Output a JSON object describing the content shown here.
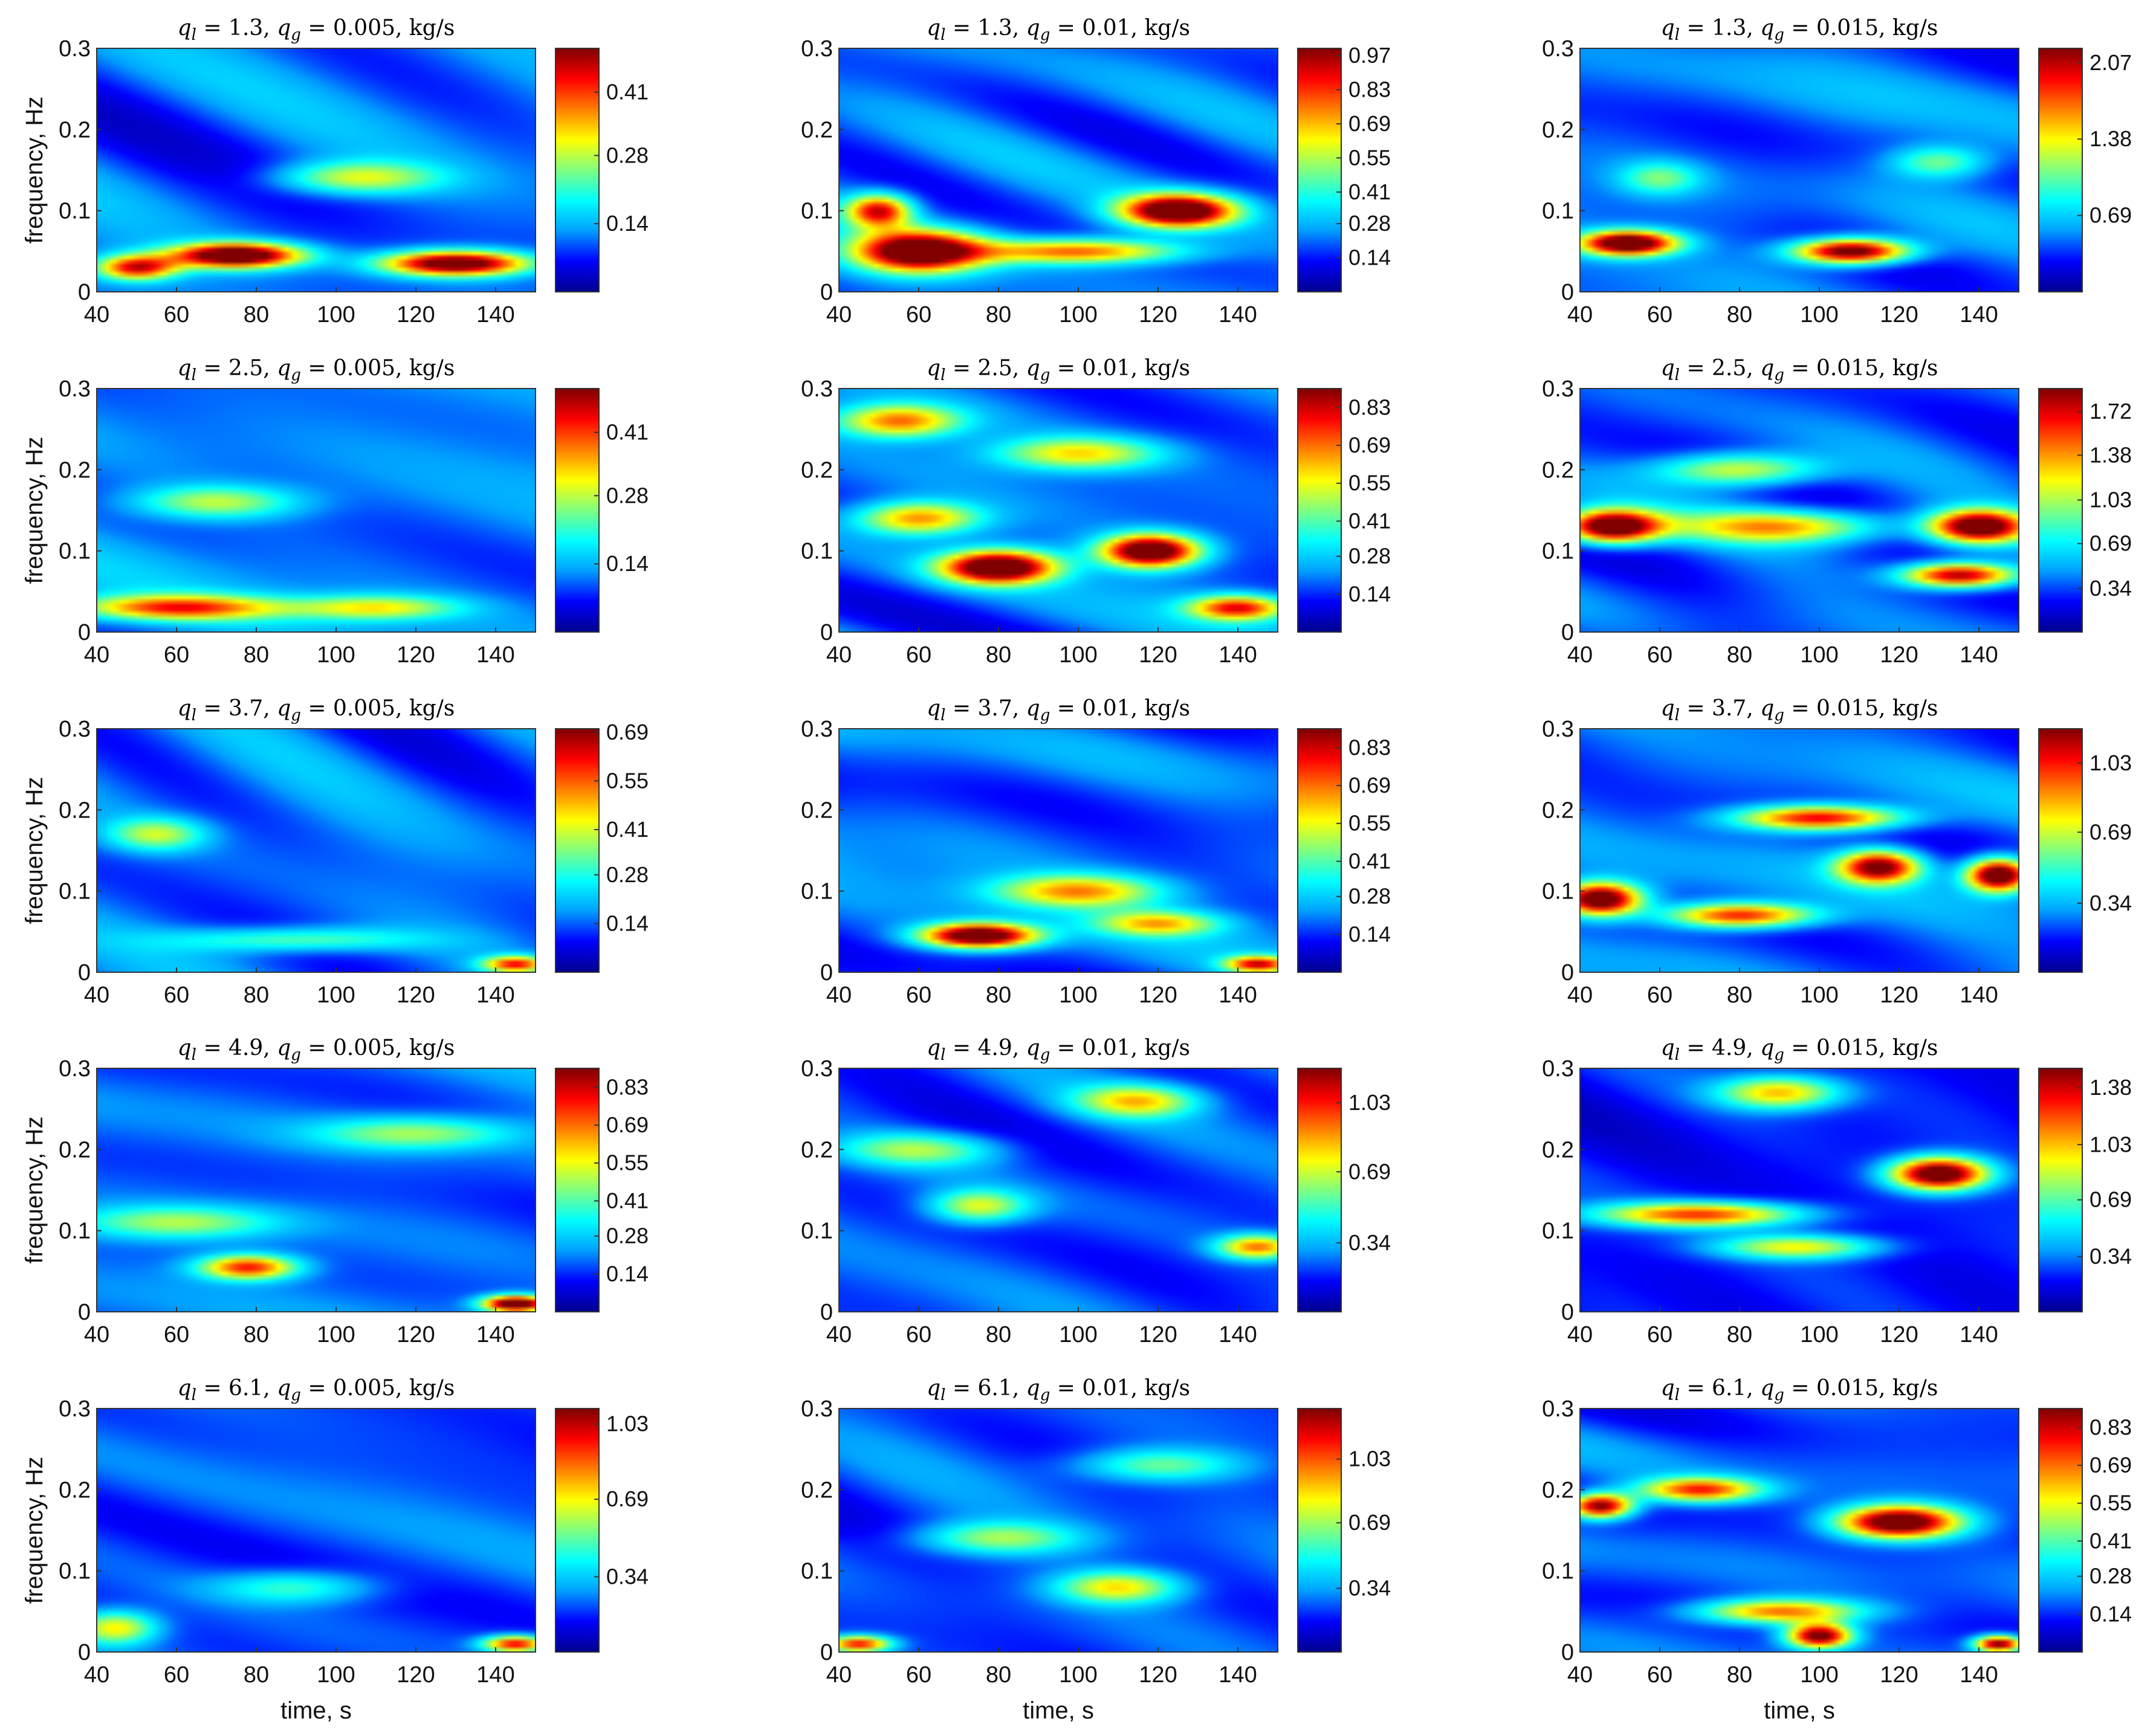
{
  "figure": {
    "xlabel": "time, s",
    "ylabel": "frequency, Hz",
    "xticks": [
      "40",
      "60",
      "80",
      "100",
      "120",
      "140"
    ],
    "yticks": [
      "0",
      "0.1",
      "0.2",
      "0.3"
    ],
    "colormap": [
      "#00008f",
      "#0000ff",
      "#00a0ff",
      "#00ffff",
      "#80ff80",
      "#ffff00",
      "#ff8000",
      "#ff0000",
      "#800000"
    ]
  },
  "chart_data": [
    {
      "type": "heatmap",
      "row": 0,
      "col": 0,
      "ql": "1.3",
      "qg": "0.005",
      "title": "q_l = 1.3, q_g = 0.005, kg/s",
      "xlabel": "",
      "ylabel": "frequency, Hz",
      "xlim": [
        40,
        150
      ],
      "ylim": [
        0,
        0.3
      ],
      "colorbar_ticks": [
        "0.14",
        "0.28",
        "0.41"
      ],
      "color_range": [
        0,
        0.5
      ],
      "hotspots": [
        {
          "t": 75,
          "f": 0.045,
          "v": 0.5,
          "w": 16,
          "h": 0.015
        },
        {
          "t": 130,
          "f": 0.035,
          "v": 0.48,
          "w": 18,
          "h": 0.015
        },
        {
          "t": 105,
          "f": 0.14,
          "v": 0.2,
          "w": 20,
          "h": 0.02
        },
        {
          "t": 50,
          "f": 0.03,
          "v": 0.35,
          "w": 10,
          "h": 0.015
        }
      ]
    },
    {
      "type": "heatmap",
      "row": 0,
      "col": 1,
      "ql": "1.3",
      "qg": "0.01",
      "title": "q_l = 1.3, q_g = 0.01, kg/s",
      "xlabel": "",
      "ylabel": "",
      "xlim": [
        40,
        150
      ],
      "ylim": [
        0,
        0.3
      ],
      "colorbar_ticks": [
        "0.14",
        "0.28",
        "0.41",
        "0.55",
        "0.69",
        "0.83",
        "0.97"
      ],
      "color_range": [
        0,
        1.0
      ],
      "hotspots": [
        {
          "t": 60,
          "f": 0.05,
          "v": 1.0,
          "w": 16,
          "h": 0.025
        },
        {
          "t": 125,
          "f": 0.1,
          "v": 1.0,
          "w": 14,
          "h": 0.02
        },
        {
          "t": 100,
          "f": 0.05,
          "v": 0.6,
          "w": 25,
          "h": 0.015
        },
        {
          "t": 50,
          "f": 0.1,
          "v": 0.7,
          "w": 8,
          "h": 0.02
        }
      ]
    },
    {
      "type": "heatmap",
      "row": 0,
      "col": 2,
      "ql": "1.3",
      "qg": "0.015",
      "title": "q_l = 1.3, q_g = 0.015, kg/s",
      "xlabel": "",
      "ylabel": "",
      "xlim": [
        40,
        150
      ],
      "ylim": [
        0,
        0.3
      ],
      "colorbar_ticks": [
        "0.69",
        "1.38",
        "2.07"
      ],
      "color_range": [
        0,
        2.2
      ],
      "hotspots": [
        {
          "t": 52,
          "f": 0.06,
          "v": 2.2,
          "w": 12,
          "h": 0.015
        },
        {
          "t": 108,
          "f": 0.05,
          "v": 2.1,
          "w": 14,
          "h": 0.015
        },
        {
          "t": 60,
          "f": 0.14,
          "v": 0.6,
          "w": 10,
          "h": 0.02
        },
        {
          "t": 130,
          "f": 0.16,
          "v": 0.7,
          "w": 12,
          "h": 0.02
        }
      ]
    },
    {
      "type": "heatmap",
      "row": 1,
      "col": 0,
      "ql": "2.5",
      "qg": "0.005",
      "title": "q_l = 2.5, q_g = 0.005, kg/s",
      "xlabel": "",
      "ylabel": "frequency, Hz",
      "xlim": [
        40,
        150
      ],
      "ylim": [
        0,
        0.3
      ],
      "colorbar_ticks": [
        "0.14",
        "0.28",
        "0.41"
      ],
      "color_range": [
        0,
        0.5
      ],
      "hotspots": [
        {
          "t": 60,
          "f": 0.03,
          "v": 0.3,
          "w": 25,
          "h": 0.015
        },
        {
          "t": 110,
          "f": 0.03,
          "v": 0.2,
          "w": 20,
          "h": 0.015
        },
        {
          "t": 70,
          "f": 0.16,
          "v": 0.18,
          "w": 20,
          "h": 0.02
        }
      ]
    },
    {
      "type": "heatmap",
      "row": 1,
      "col": 1,
      "ql": "2.5",
      "qg": "0.01",
      "title": "q_l = 2.5, q_g = 0.01, kg/s",
      "xlabel": "",
      "ylabel": "",
      "xlim": [
        40,
        150
      ],
      "ylim": [
        0,
        0.3
      ],
      "colorbar_ticks": [
        "0.14",
        "0.28",
        "0.41",
        "0.55",
        "0.69",
        "0.83"
      ],
      "color_range": [
        0,
        0.9
      ],
      "hotspots": [
        {
          "t": 80,
          "f": 0.08,
          "v": 0.9,
          "w": 14,
          "h": 0.02
        },
        {
          "t": 118,
          "f": 0.1,
          "v": 0.9,
          "w": 12,
          "h": 0.02
        },
        {
          "t": 60,
          "f": 0.14,
          "v": 0.5,
          "w": 15,
          "h": 0.02
        },
        {
          "t": 55,
          "f": 0.26,
          "v": 0.5,
          "w": 15,
          "h": 0.02
        },
        {
          "t": 140,
          "f": 0.03,
          "v": 0.6,
          "w": 12,
          "h": 0.015
        },
        {
          "t": 100,
          "f": 0.22,
          "v": 0.4,
          "w": 20,
          "h": 0.02
        }
      ]
    },
    {
      "type": "heatmap",
      "row": 1,
      "col": 2,
      "ql": "2.5",
      "qg": "0.015",
      "title": "q_l = 2.5, q_g = 0.015, kg/s",
      "xlabel": "",
      "ylabel": "",
      "xlim": [
        40,
        150
      ],
      "ylim": [
        0,
        0.3
      ],
      "colorbar_ticks": [
        "0.34",
        "0.69",
        "1.03",
        "1.38",
        "1.72"
      ],
      "color_range": [
        0,
        1.9
      ],
      "hotspots": [
        {
          "t": 48,
          "f": 0.13,
          "v": 1.9,
          "w": 12,
          "h": 0.02
        },
        {
          "t": 140,
          "f": 0.13,
          "v": 1.8,
          "w": 12,
          "h": 0.02
        },
        {
          "t": 135,
          "f": 0.07,
          "v": 1.6,
          "w": 14,
          "h": 0.015
        },
        {
          "t": 80,
          "f": 0.2,
          "v": 0.9,
          "w": 20,
          "h": 0.02
        },
        {
          "t": 90,
          "f": 0.13,
          "v": 1.0,
          "w": 25,
          "h": 0.02
        }
      ]
    },
    {
      "type": "heatmap",
      "row": 2,
      "col": 0,
      "ql": "3.7",
      "qg": "0.005",
      "title": "q_l = 3.7, q_g = 0.005, kg/s",
      "xlabel": "",
      "ylabel": "frequency, Hz",
      "xlim": [
        40,
        150
      ],
      "ylim": [
        0,
        0.3
      ],
      "colorbar_ticks": [
        "0.14",
        "0.28",
        "0.41",
        "0.55",
        "0.69"
      ],
      "color_range": [
        0,
        0.7
      ],
      "hotspots": [
        {
          "t": 55,
          "f": 0.17,
          "v": 0.25,
          "w": 12,
          "h": 0.02
        },
        {
          "t": 90,
          "f": 0.04,
          "v": 0.22,
          "w": 30,
          "h": 0.015
        },
        {
          "t": 145,
          "f": 0.01,
          "v": 0.45,
          "w": 8,
          "h": 0.01
        }
      ]
    },
    {
      "type": "heatmap",
      "row": 2,
      "col": 1,
      "ql": "3.7",
      "qg": "0.01",
      "title": "q_l = 3.7, q_g = 0.01, kg/s",
      "xlabel": "",
      "ylabel": "",
      "xlim": [
        40,
        150
      ],
      "ylim": [
        0,
        0.3
      ],
      "colorbar_ticks": [
        "0.14",
        "0.28",
        "0.41",
        "0.55",
        "0.69",
        "0.83"
      ],
      "color_range": [
        0,
        0.9
      ],
      "hotspots": [
        {
          "t": 75,
          "f": 0.045,
          "v": 0.9,
          "w": 14,
          "h": 0.015
        },
        {
          "t": 100,
          "f": 0.1,
          "v": 0.45,
          "w": 20,
          "h": 0.02
        },
        {
          "t": 120,
          "f": 0.06,
          "v": 0.4,
          "w": 15,
          "h": 0.015
        },
        {
          "t": 145,
          "f": 0.01,
          "v": 0.6,
          "w": 8,
          "h": 0.01
        }
      ]
    },
    {
      "type": "heatmap",
      "row": 2,
      "col": 2,
      "ql": "3.7",
      "qg": "0.015",
      "title": "q_l = 3.7, q_g = 0.015, kg/s",
      "xlabel": "",
      "ylabel": "",
      "xlim": [
        40,
        150
      ],
      "ylim": [
        0,
        0.3
      ],
      "colorbar_ticks": [
        "0.34",
        "0.69",
        "1.03"
      ],
      "color_range": [
        0,
        1.2
      ],
      "hotspots": [
        {
          "t": 45,
          "f": 0.09,
          "v": 1.2,
          "w": 10,
          "h": 0.02
        },
        {
          "t": 145,
          "f": 0.12,
          "v": 1.2,
          "w": 8,
          "h": 0.02
        },
        {
          "t": 100,
          "f": 0.19,
          "v": 0.9,
          "w": 20,
          "h": 0.015
        },
        {
          "t": 115,
          "f": 0.13,
          "v": 1.0,
          "w": 10,
          "h": 0.02
        },
        {
          "t": 80,
          "f": 0.07,
          "v": 0.85,
          "w": 18,
          "h": 0.015
        }
      ]
    },
    {
      "type": "heatmap",
      "row": 3,
      "col": 0,
      "ql": "4.9",
      "qg": "0.005",
      "title": "q_l = 4.9, q_g = 0.005, kg/s",
      "xlabel": "",
      "ylabel": "frequency, Hz",
      "xlim": [
        40,
        150
      ],
      "ylim": [
        0,
        0.3
      ],
      "colorbar_ticks": [
        "0.14",
        "0.28",
        "0.41",
        "0.55",
        "0.69",
        "0.83"
      ],
      "color_range": [
        0,
        0.9
      ],
      "hotspots": [
        {
          "t": 78,
          "f": 0.055,
          "v": 0.6,
          "w": 12,
          "h": 0.015
        },
        {
          "t": 145,
          "f": 0.01,
          "v": 0.9,
          "w": 8,
          "h": 0.01
        },
        {
          "t": 60,
          "f": 0.11,
          "v": 0.3,
          "w": 25,
          "h": 0.02
        },
        {
          "t": 120,
          "f": 0.22,
          "v": 0.3,
          "w": 25,
          "h": 0.02
        }
      ]
    },
    {
      "type": "heatmap",
      "row": 3,
      "col": 1,
      "ql": "4.9",
      "qg": "0.01",
      "title": "q_l = 4.9, q_g = 0.01, kg/s",
      "xlabel": "",
      "ylabel": "",
      "xlim": [
        40,
        150
      ],
      "ylim": [
        0,
        0.3
      ],
      "colorbar_ticks": [
        "0.34",
        "0.69",
        "1.03"
      ],
      "color_range": [
        0,
        1.2
      ],
      "hotspots": [
        {
          "t": 115,
          "f": 0.26,
          "v": 0.55,
          "w": 15,
          "h": 0.02
        },
        {
          "t": 75,
          "f": 0.13,
          "v": 0.5,
          "w": 12,
          "h": 0.02
        },
        {
          "t": 145,
          "f": 0.08,
          "v": 0.7,
          "w": 10,
          "h": 0.015
        },
        {
          "t": 60,
          "f": 0.2,
          "v": 0.4,
          "w": 20,
          "h": 0.02
        }
      ]
    },
    {
      "type": "heatmap",
      "row": 3,
      "col": 2,
      "ql": "4.9",
      "qg": "0.015",
      "title": "q_l = 4.9, q_g = 0.015, kg/s",
      "xlabel": "",
      "ylabel": "",
      "xlim": [
        40,
        150
      ],
      "ylim": [
        0,
        0.3
      ],
      "colorbar_ticks": [
        "0.34",
        "0.69",
        "1.03",
        "1.38"
      ],
      "color_range": [
        0,
        1.5
      ],
      "hotspots": [
        {
          "t": 130,
          "f": 0.17,
          "v": 1.5,
          "w": 12,
          "h": 0.02
        },
        {
          "t": 90,
          "f": 0.27,
          "v": 0.8,
          "w": 15,
          "h": 0.02
        },
        {
          "t": 70,
          "f": 0.12,
          "v": 1.0,
          "w": 25,
          "h": 0.015
        },
        {
          "t": 95,
          "f": 0.08,
          "v": 0.7,
          "w": 20,
          "h": 0.015
        }
      ]
    },
    {
      "type": "heatmap",
      "row": 4,
      "col": 0,
      "ql": "6.1",
      "qg": "0.005",
      "title": "q_l = 6.1, q_g = 0.005, kg/s",
      "xlabel": "time, s",
      "ylabel": "frequency, Hz",
      "xlim": [
        40,
        150
      ],
      "ylim": [
        0,
        0.3
      ],
      "colorbar_ticks": [
        "0.34",
        "0.69",
        "1.03"
      ],
      "color_range": [
        0,
        1.1
      ],
      "hotspots": [
        {
          "t": 45,
          "f": 0.03,
          "v": 0.5,
          "w": 10,
          "h": 0.02
        },
        {
          "t": 145,
          "f": 0.01,
          "v": 0.8,
          "w": 8,
          "h": 0.01
        },
        {
          "t": 90,
          "f": 0.08,
          "v": 0.3,
          "w": 20,
          "h": 0.02
        }
      ]
    },
    {
      "type": "heatmap",
      "row": 4,
      "col": 1,
      "ql": "6.1",
      "qg": "0.01",
      "title": "q_l = 6.1, q_g = 0.01, kg/s",
      "xlabel": "time, s",
      "ylabel": "",
      "xlim": [
        40,
        150
      ],
      "ylim": [
        0,
        0.3
      ],
      "colorbar_ticks": [
        "0.34",
        "0.69",
        "1.03"
      ],
      "color_range": [
        0,
        1.3
      ],
      "hotspots": [
        {
          "t": 110,
          "f": 0.08,
          "v": 0.6,
          "w": 15,
          "h": 0.02
        },
        {
          "t": 45,
          "f": 0.01,
          "v": 0.9,
          "w": 8,
          "h": 0.01
        },
        {
          "t": 80,
          "f": 0.14,
          "v": 0.45,
          "w": 20,
          "h": 0.02
        },
        {
          "t": 120,
          "f": 0.23,
          "v": 0.4,
          "w": 20,
          "h": 0.02
        }
      ]
    },
    {
      "type": "heatmap",
      "row": 4,
      "col": 2,
      "ql": "6.1",
      "qg": "0.015",
      "title": "q_l = 6.1, q_g = 0.015, kg/s",
      "xlabel": "time, s",
      "ylabel": "",
      "xlim": [
        40,
        150
      ],
      "ylim": [
        0,
        0.3
      ],
      "colorbar_ticks": [
        "0.14",
        "0.28",
        "0.41",
        "0.55",
        "0.69",
        "0.83"
      ],
      "color_range": [
        0,
        0.9
      ],
      "hotspots": [
        {
          "t": 120,
          "f": 0.16,
          "v": 0.9,
          "w": 15,
          "h": 0.02
        },
        {
          "t": 100,
          "f": 0.02,
          "v": 0.8,
          "w": 8,
          "h": 0.015
        },
        {
          "t": 145,
          "f": 0.01,
          "v": 0.8,
          "w": 6,
          "h": 0.01
        },
        {
          "t": 45,
          "f": 0.18,
          "v": 0.8,
          "w": 8,
          "h": 0.015
        },
        {
          "t": 70,
          "f": 0.2,
          "v": 0.6,
          "w": 15,
          "h": 0.015
        },
        {
          "t": 90,
          "f": 0.05,
          "v": 0.55,
          "w": 20,
          "h": 0.015
        }
      ]
    }
  ]
}
